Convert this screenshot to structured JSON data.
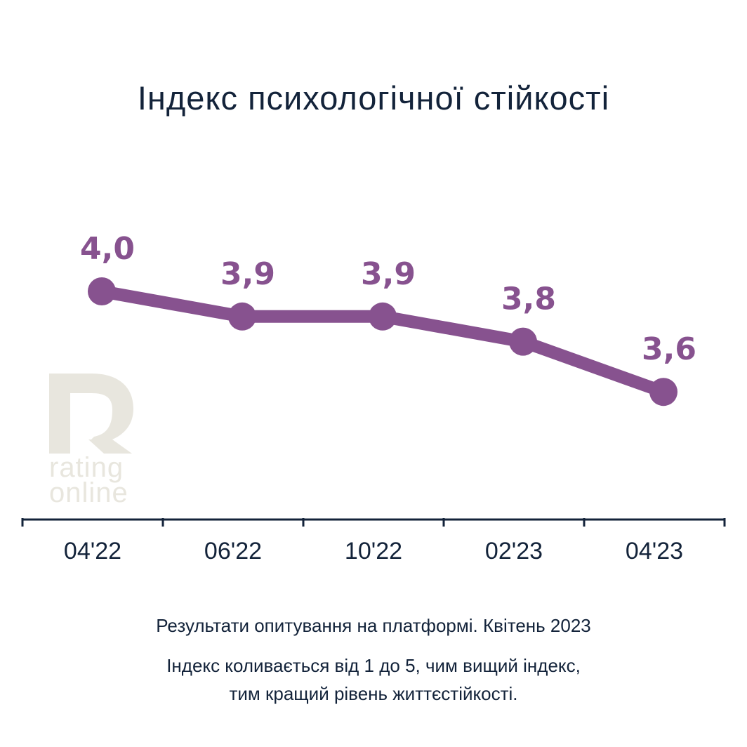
{
  "title": "Індекс психологічної стійкості",
  "footer": {
    "line1": "Результати опитування на платформі. Квітень 2023",
    "line2": "Індекс коливається від 1 до 5, чим вищий індекс,",
    "line3": "тим кращий рівень життєстійкості."
  },
  "logo": {
    "line1": "rating",
    "line2": "online"
  },
  "colors": {
    "line": "#87528f",
    "axis": "#13233a",
    "text": "#13233a",
    "logo": "#e8e6de"
  },
  "chart_data": {
    "type": "line",
    "title": "Індекс психологічної стійкості",
    "categories": [
      "04'22",
      "06'22",
      "10'22",
      "02'23",
      "04'23"
    ],
    "values": [
      4.0,
      3.9,
      3.9,
      3.8,
      3.6
    ],
    "value_labels": [
      "4,0",
      "3,9",
      "3,9",
      "3,8",
      "3,6"
    ],
    "ylim": [
      1,
      5
    ],
    "grid": false,
    "legend": "none"
  }
}
